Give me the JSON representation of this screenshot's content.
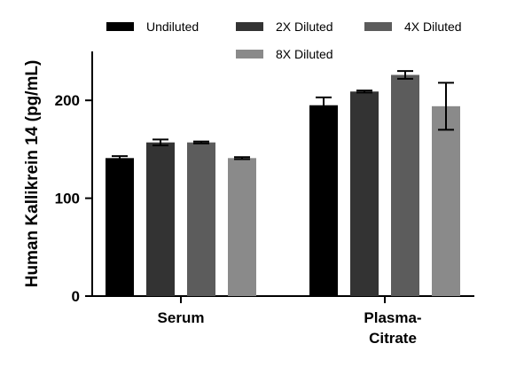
{
  "chart_data": {
    "type": "bar",
    "title": "",
    "xlabel": "",
    "ylabel": "Human Kallikrein 14 (pg/mL)",
    "ylim": [
      0,
      250
    ],
    "yticks": [
      0,
      100,
      200
    ],
    "grid": false,
    "legend_position": "top",
    "categories": [
      {
        "lines": [
          "Serum"
        ]
      },
      {
        "lines": [
          "Plasma-",
          "Citrate"
        ]
      }
    ],
    "series": [
      {
        "name": "Undiluted",
        "color": "#000000",
        "values": [
          141,
          195
        ],
        "errors": [
          2,
          8
        ]
      },
      {
        "name": "2X Diluted",
        "color": "#333333",
        "values": [
          157,
          209
        ],
        "errors": [
          3,
          1
        ]
      },
      {
        "name": "4X Diluted",
        "color": "#5c5c5c",
        "values": [
          157,
          226
        ],
        "errors": [
          1,
          4
        ]
      },
      {
        "name": "8X Diluted",
        "color": "#8a8a8a",
        "values": [
          141,
          194
        ],
        "errors": [
          1,
          24
        ]
      }
    ]
  }
}
